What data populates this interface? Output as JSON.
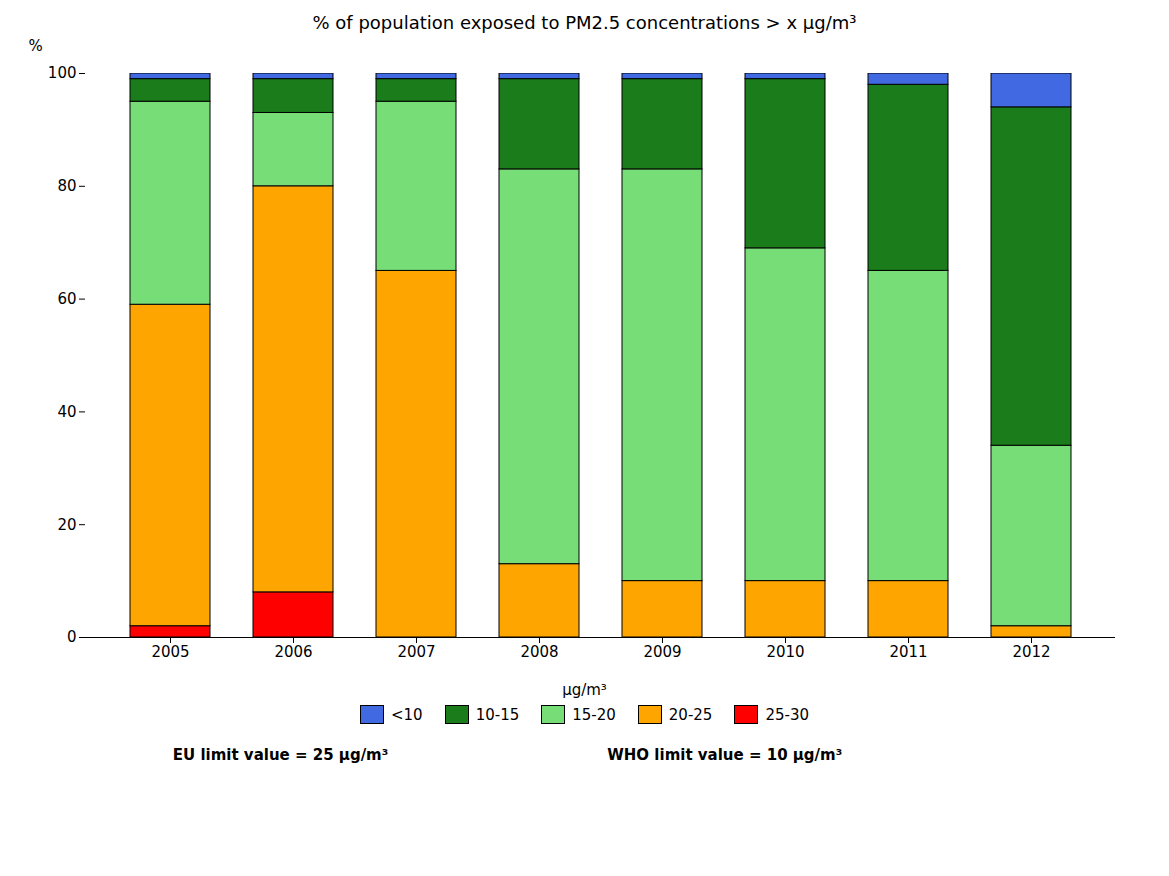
{
  "chart_data": {
    "type": "bar",
    "stacked": true,
    "title": "% of population exposed to PM2.5 concentrations > x μg/m³",
    "ylabel": "%",
    "categories": [
      "2005",
      "2006",
      "2007",
      "2008",
      "2009",
      "2010",
      "2011",
      "2012"
    ],
    "series": [
      {
        "name": "25-30",
        "color": "#FF0000",
        "values": [
          2,
          8,
          0,
          0,
          0,
          0,
          0,
          0
        ]
      },
      {
        "name": "20-25",
        "color": "#FFA500",
        "values": [
          57,
          72,
          65,
          13,
          10,
          10,
          10,
          2
        ]
      },
      {
        "name": "15-20",
        "color": "#77DD77",
        "values": [
          36,
          13,
          30,
          70,
          73,
          59,
          55,
          32
        ]
      },
      {
        "name": "10-15",
        "color": "#1A7C1A",
        "values": [
          4,
          6,
          4,
          16,
          16,
          30,
          33,
          60
        ]
      },
      {
        "name": "<10",
        "color": "#4169E1",
        "values": [
          1,
          1,
          1,
          1,
          1,
          1,
          2,
          6
        ]
      }
    ],
    "ylim": [
      0,
      100
    ],
    "yticks": [
      0,
      20,
      40,
      60,
      80,
      100
    ],
    "grid": false,
    "legend": "bottom",
    "legend_title": "μg/m³",
    "annotations": [
      "EU limit value = 25 μg/m³",
      "WHO limit value = 10 μg/m³"
    ]
  }
}
